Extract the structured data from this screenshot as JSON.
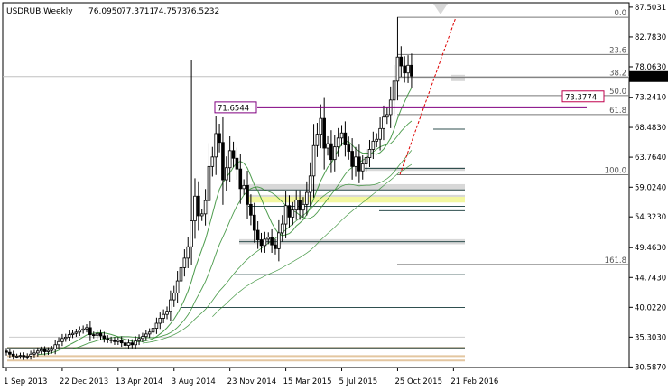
{
  "window": {
    "symbol_label": "USDRUB,Weekly",
    "ohlc": [
      "76.0950",
      "77.3711",
      "74.7573",
      "76.5232"
    ]
  },
  "chart_data": {
    "type": "candlestick",
    "title": "USDRUB,Weekly",
    "ylim": [
      30.5,
      88.2
    ],
    "y_ticks": [
      "87.5031",
      "82.7830",
      "78.0630",
      "73.2410",
      "68.4830",
      "63.7640",
      "59.0240",
      "54.3230",
      "49.4630",
      "44.7430",
      "40.0220",
      "35.3030",
      "30.5870"
    ],
    "x_tick_labels": [
      "1 Sep 2013",
      "22 Dec 2013",
      "13 Apr 2014",
      "3 Aug 2014",
      "23 Nov 2014",
      "15 Mar 2015",
      "5 Jul 2015",
      "25 Oct 2015",
      "21 Feb 2016"
    ],
    "x_tick_index": [
      0,
      16,
      32,
      48,
      64,
      80,
      96,
      112,
      128
    ],
    "last_price": "76.5232",
    "markers": [
      {
        "label": "71.6544",
        "value": 71.65,
        "color": "#800080"
      },
      {
        "label": "73.3774",
        "value": 73.38,
        "color": "#c0004d"
      }
    ],
    "fibonacci": [
      {
        "label": "0.0",
        "value": 85.9
      },
      {
        "label": "23.6",
        "value": 80.0
      },
      {
        "label": "38.2",
        "value": 76.4
      },
      {
        "label": "50.0",
        "value": 73.5
      },
      {
        "label": "61.8",
        "value": 70.5
      },
      {
        "label": "100.0",
        "value": 61.0
      },
      {
        "label": "161.8",
        "value": 46.8
      }
    ],
    "candles_weekly_close": [
      32.9,
      32.6,
      32.3,
      32.3,
      32.4,
      32.2,
      32.3,
      32.6,
      32.8,
      33.1,
      33.3,
      33.0,
      33.2,
      33.4,
      34.1,
      34.6,
      35.1,
      35.3,
      35.7,
      35.9,
      36.1,
      36.4,
      36.6,
      36.8,
      35.7,
      35.6,
      35.9,
      35.5,
      35.1,
      34.9,
      34.8,
      34.6,
      34.8,
      34.4,
      34.0,
      34.4,
      34.1,
      34.7,
      35.1,
      35.4,
      35.8,
      36.1,
      36.7,
      37.5,
      38.3,
      38.9,
      39.4,
      41.2,
      42.3,
      44.2,
      46.3,
      47.8,
      49.6,
      53.7,
      57.6,
      54.5,
      54.8,
      56.9,
      62.3,
      63.8,
      67.5,
      66.1,
      60.2,
      62.1,
      64.8,
      63.6,
      61.9,
      58.8,
      59.3,
      56.3,
      54.6,
      52.2,
      50.7,
      49.8,
      50.8,
      51.1,
      49.9,
      49.3,
      51.8,
      53.2,
      56.1,
      54.3,
      55.4,
      57.0,
      55.4,
      56.3,
      58.2,
      60.8,
      65.6,
      67.4,
      69.9,
      65.2,
      65.9,
      63.4,
      65.4,
      66.8,
      67.6,
      65.7,
      64.7,
      62.3,
      63.8,
      61.6,
      62.7,
      63.7,
      65.0,
      66.3,
      66.6,
      68.3,
      70.1,
      70.5,
      72.8,
      75.8,
      79.6,
      78.2,
      77.1,
      78.3,
      76.6
    ]
  }
}
